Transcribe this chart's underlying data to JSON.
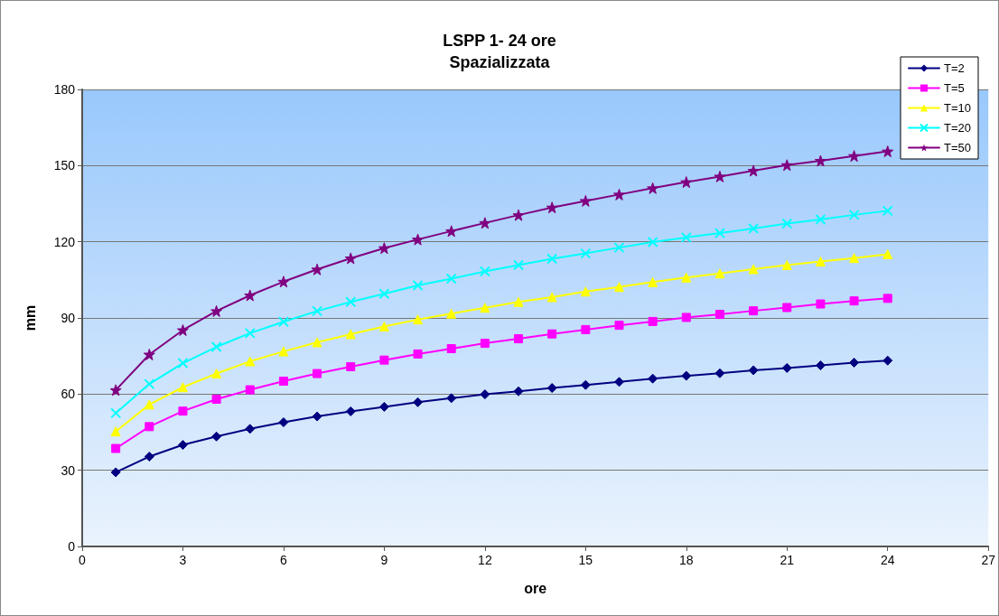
{
  "chart_data": {
    "type": "line",
    "title": "LSPP 1- 24 ore",
    "subtitle": "Spazializzata",
    "xlabel": "ore",
    "ylabel": "mm",
    "x": [
      1,
      2,
      3,
      4,
      5,
      6,
      7,
      8,
      9,
      10,
      11,
      12,
      13,
      14,
      15,
      16,
      17,
      18,
      19,
      20,
      21,
      22,
      23,
      24
    ],
    "xlim": [
      0,
      27
    ],
    "xticks": [
      0,
      3,
      6,
      9,
      12,
      15,
      18,
      21,
      24,
      27
    ],
    "ylim": [
      0,
      180
    ],
    "yticks": [
      0,
      30,
      60,
      90,
      120,
      150,
      180
    ],
    "grid": "y",
    "legend": "top right",
    "series": [
      {
        "name": "T=2",
        "color": "#000080",
        "marker": "diamond",
        "values": [
          29.2,
          35.4,
          40.0,
          43.3,
          46.3,
          48.9,
          51.2,
          53.2,
          55.0,
          56.8,
          58.4,
          59.9,
          61.1,
          62.4,
          63.6,
          64.8,
          66.1,
          67.2,
          68.2,
          69.4,
          70.3,
          71.3,
          72.4,
          73.2
        ]
      },
      {
        "name": "T=5",
        "color": "#ff00ff",
        "marker": "square",
        "values": [
          38.6,
          47.2,
          53.3,
          58.0,
          61.7,
          65.1,
          68.1,
          70.8,
          73.4,
          75.8,
          77.9,
          80.0,
          81.8,
          83.7,
          85.4,
          87.1,
          88.6,
          90.2,
          91.4,
          92.8,
          94.1,
          95.5,
          96.7,
          97.7
        ]
      },
      {
        "name": "T=10",
        "color": "#ffff00",
        "marker": "triangle",
        "values": [
          45.3,
          55.9,
          62.7,
          68.1,
          72.9,
          76.8,
          80.4,
          83.6,
          86.6,
          89.4,
          91.7,
          94.0,
          96.3,
          98.2,
          100.4,
          102.2,
          104.1,
          105.9,
          107.5,
          109.2,
          110.8,
          112.2,
          113.6,
          115.1
        ]
      },
      {
        "name": "T=20",
        "color": "#00ffff",
        "marker": "cross",
        "values": [
          52.5,
          64.0,
          72.2,
          78.6,
          84.0,
          88.5,
          92.7,
          96.3,
          99.5,
          102.8,
          105.5,
          108.3,
          110.8,
          113.3,
          115.4,
          117.7,
          119.9,
          121.7,
          123.4,
          125.2,
          127.2,
          128.8,
          130.6,
          132.2
        ]
      },
      {
        "name": "T=50",
        "color": "#800080",
        "marker": "star",
        "values": [
          61.6,
          75.6,
          85.2,
          92.7,
          98.9,
          104.3,
          109.1,
          113.5,
          117.5,
          120.9,
          124.2,
          127.4,
          130.5,
          133.5,
          136.1,
          138.6,
          141.1,
          143.5,
          145.7,
          148.0,
          150.2,
          151.9,
          153.8,
          155.6
        ]
      }
    ]
  }
}
